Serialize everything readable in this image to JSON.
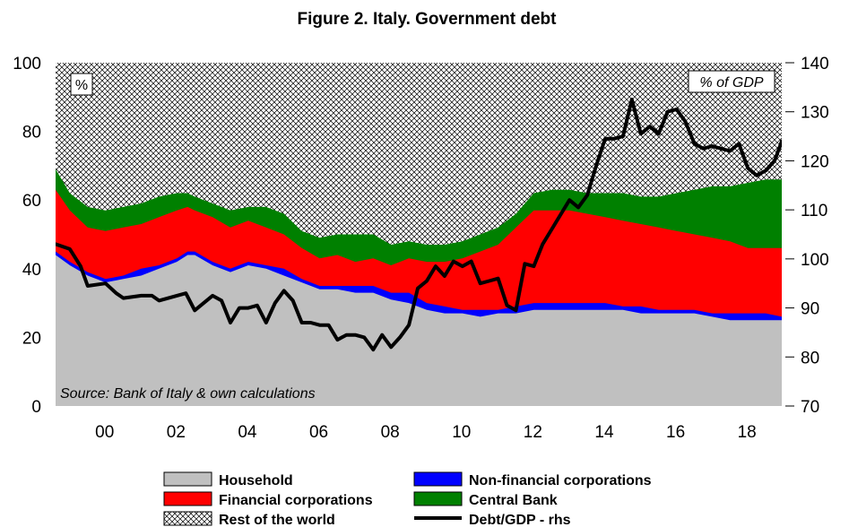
{
  "chart_data": {
    "type": "area",
    "title": "Figure 2. Italy. Government debt",
    "left_unit": "%",
    "right_unit": "% of GDP",
    "source": "Source: Bank of Italy & own calculations",
    "x_tick_labels": [
      "00",
      "02",
      "04",
      "06",
      "08",
      "10",
      "12",
      "14",
      "16",
      "18"
    ],
    "x_tick_years": [
      2000,
      2002,
      2004,
      2006,
      2008,
      2010,
      2012,
      2014,
      2016,
      2018
    ],
    "xlim": [
      1998.6,
      2018.95
    ],
    "ylim_left": [
      0,
      100
    ],
    "yticks_left": [
      "0",
      "20",
      "40",
      "60",
      "80",
      "100"
    ],
    "ylim_right": [
      70,
      140
    ],
    "yticks_right": [
      "70",
      "80",
      "90",
      "100",
      "110",
      "120",
      "130",
      "140"
    ],
    "legend_position": "bottom",
    "colors": {
      "household": "#c0c0c0",
      "non_financial": "#0000ff",
      "financial": "#ff0000",
      "central_bank": "#008000",
      "rest_of_world": "#ffffff",
      "debt_gdp": "#000000"
    },
    "x": [
      1998.6,
      1999.0,
      1999.5,
      2000.0,
      2000.5,
      2001.0,
      2001.5,
      2002.0,
      2002.3,
      2002.5,
      2003.0,
      2003.5,
      2004.0,
      2004.5,
      2005.0,
      2005.5,
      2006.0,
      2006.5,
      2007.0,
      2007.5,
      2008.0,
      2008.5,
      2009.0,
      2009.5,
      2010.0,
      2010.5,
      2011.0,
      2011.5,
      2012.0,
      2012.5,
      2013.0,
      2013.5,
      2014.0,
      2014.5,
      2015.0,
      2015.5,
      2016.0,
      2016.5,
      2017.0,
      2017.5,
      2018.0,
      2018.5,
      2018.95
    ],
    "series": [
      {
        "name": "Household",
        "key": "household",
        "cumulative": [
          44,
          41,
          38,
          36,
          37,
          38,
          40,
          42,
          44,
          44,
          41,
          39,
          41,
          40,
          38,
          36,
          34,
          34,
          33,
          33,
          31,
          30,
          28,
          27,
          27,
          26,
          27,
          27,
          28,
          28,
          28,
          28,
          28,
          28,
          27,
          27,
          27,
          27,
          26,
          25,
          25,
          25,
          25
        ]
      },
      {
        "name": "Non-financial corporations",
        "key": "non_financial",
        "cumulative": [
          45,
          42,
          39,
          37,
          38,
          40,
          41,
          43,
          45,
          45,
          42,
          40,
          42,
          41,
          40,
          37,
          35,
          35,
          35,
          35,
          33,
          33,
          30,
          29,
          28,
          28,
          28,
          29,
          30,
          30,
          30,
          30,
          30,
          29,
          29,
          28,
          28,
          28,
          27,
          27,
          27,
          27,
          26
        ]
      },
      {
        "name": "Financial corporations",
        "key": "financial",
        "cumulative": [
          63,
          57,
          52,
          51,
          52,
          53,
          55,
          57,
          58,
          57,
          55,
          52,
          54,
          52,
          50,
          46,
          43,
          44,
          42,
          43,
          41,
          43,
          42,
          42,
          43,
          45,
          47,
          52,
          57,
          57,
          57,
          56,
          55,
          54,
          53,
          52,
          51,
          50,
          49,
          48,
          46,
          46,
          46
        ]
      },
      {
        "name": "Central Bank",
        "key": "central_bank",
        "cumulative": [
          69,
          62,
          58,
          57,
          58,
          59,
          61,
          62,
          62,
          61,
          59,
          57,
          58,
          58,
          56,
          51,
          49,
          50,
          50,
          50,
          47,
          48,
          47,
          47,
          48,
          50,
          52,
          56,
          62,
          63,
          63,
          62,
          62,
          62,
          61,
          61,
          62,
          63,
          64,
          64,
          65,
          66,
          66
        ]
      }
    ],
    "rest_of_world_top": 100,
    "debt_gdp": {
      "name": "Debt/GDP - rhs",
      "axis": "right",
      "x": [
        1998.6,
        1999.0,
        1999.3,
        1999.5,
        2000.0,
        2000.3,
        2000.5,
        2001.0,
        2001.3,
        2001.5,
        2002.0,
        2002.25,
        2002.5,
        2003.0,
        2003.25,
        2003.5,
        2003.75,
        2004.0,
        2004.25,
        2004.5,
        2004.75,
        2005.0,
        2005.25,
        2005.5,
        2005.75,
        2006.0,
        2006.25,
        2006.5,
        2006.75,
        2007.0,
        2007.25,
        2007.5,
        2007.75,
        2008.0,
        2008.25,
        2008.5,
        2008.75,
        2009.0,
        2009.25,
        2009.5,
        2009.75,
        2010.0,
        2010.25,
        2010.5,
        2010.75,
        2011.0,
        2011.25,
        2011.5,
        2011.75,
        2012.0,
        2012.25,
        2012.5,
        2012.75,
        2013.0,
        2013.25,
        2013.5,
        2013.75,
        2014.0,
        2014.25,
        2014.5,
        2014.75,
        2015.0,
        2015.25,
        2015.5,
        2015.75,
        2016.0,
        2016.25,
        2016.5,
        2016.75,
        2017.0,
        2017.25,
        2017.5,
        2017.75,
        2018.0,
        2018.25,
        2018.5,
        2018.75,
        2018.95
      ],
      "values": [
        103,
        102,
        98.5,
        94.5,
        95,
        93,
        92,
        92.5,
        92.5,
        91.5,
        92.5,
        93,
        89.5,
        92.5,
        91.5,
        87,
        90,
        90,
        90.5,
        87,
        91,
        93.5,
        91.5,
        87,
        87,
        86.5,
        86.5,
        83.5,
        84.5,
        84.5,
        84,
        81.5,
        84.5,
        82,
        84,
        86.5,
        94,
        95.5,
        98.5,
        96.5,
        99.5,
        98.5,
        99.5,
        95,
        95.5,
        96,
        90.5,
        89.5,
        99,
        98.5,
        103,
        106,
        109,
        112,
        110.5,
        113,
        119,
        124.5,
        124.5,
        125,
        132.5,
        125.5,
        127,
        125.5,
        130,
        130.5,
        128,
        123.5,
        122.5,
        123,
        122.5,
        122,
        123.5,
        118.5,
        117,
        118,
        120,
        124
      ]
    }
  },
  "legend": {
    "household": "Household",
    "non_financial": "Non-financial corporations",
    "financial": "Financial corporations",
    "central_bank": "Central Bank",
    "rest_of_world": "Rest of the world",
    "debt_gdp": "Debt/GDP - rhs"
  }
}
